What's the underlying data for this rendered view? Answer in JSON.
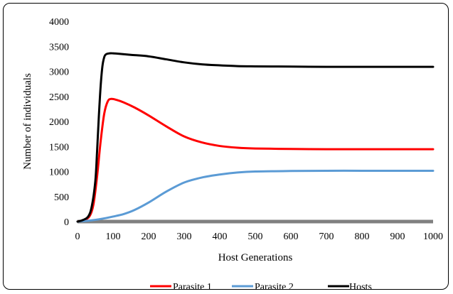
{
  "chart_data": {
    "type": "line",
    "title": "",
    "xlabel": "Host Generations",
    "ylabel": "Number of individuals",
    "xlim": [
      0,
      1000
    ],
    "ylim": [
      0,
      4000
    ],
    "x_ticks": [
      0,
      100,
      200,
      300,
      400,
      500,
      600,
      700,
      800,
      900,
      1000
    ],
    "y_ticks": [
      0,
      500,
      1000,
      1500,
      2000,
      2500,
      3000,
      3500,
      4000
    ],
    "grid": false,
    "legend_position": "bottom",
    "baseline": {
      "value": 0,
      "color": "#808080"
    },
    "series": [
      {
        "name": "Parasite 1",
        "color": "#ff0000",
        "x": [
          0,
          20,
          35,
          45,
          55,
          65,
          75,
          85,
          95,
          110,
          130,
          160,
          200,
          250,
          300,
          350,
          400,
          450,
          500,
          600,
          700,
          800,
          900,
          1000
        ],
        "y": [
          0,
          30,
          120,
          350,
          900,
          1600,
          2150,
          2400,
          2450,
          2430,
          2380,
          2280,
          2120,
          1900,
          1700,
          1580,
          1510,
          1475,
          1460,
          1450,
          1445,
          1445,
          1445,
          1445
        ]
      },
      {
        "name": "Parasite 2",
        "color": "#5b9bd5",
        "x": [
          0,
          20,
          40,
          60,
          80,
          100,
          130,
          160,
          200,
          250,
          300,
          350,
          400,
          450,
          500,
          600,
          700,
          800,
          900,
          1000
        ],
        "y": [
          0,
          10,
          25,
          45,
          70,
          100,
          150,
          230,
          380,
          600,
          780,
          880,
          940,
          980,
          1000,
          1010,
          1015,
          1015,
          1015,
          1015
        ]
      },
      {
        "name": "Hosts",
        "color": "#000000",
        "x": [
          0,
          15,
          30,
          40,
          50,
          55,
          60,
          65,
          70,
          75,
          80,
          90,
          100,
          120,
          150,
          200,
          250,
          300,
          350,
          400,
          450,
          500,
          600,
          700,
          800,
          900,
          1000
        ],
        "y": [
          0,
          30,
          100,
          300,
          800,
          1400,
          2100,
          2700,
          3100,
          3280,
          3340,
          3360,
          3360,
          3350,
          3330,
          3300,
          3240,
          3180,
          3140,
          3120,
          3105,
          3100,
          3095,
          3090,
          3090,
          3090,
          3090
        ]
      }
    ]
  }
}
